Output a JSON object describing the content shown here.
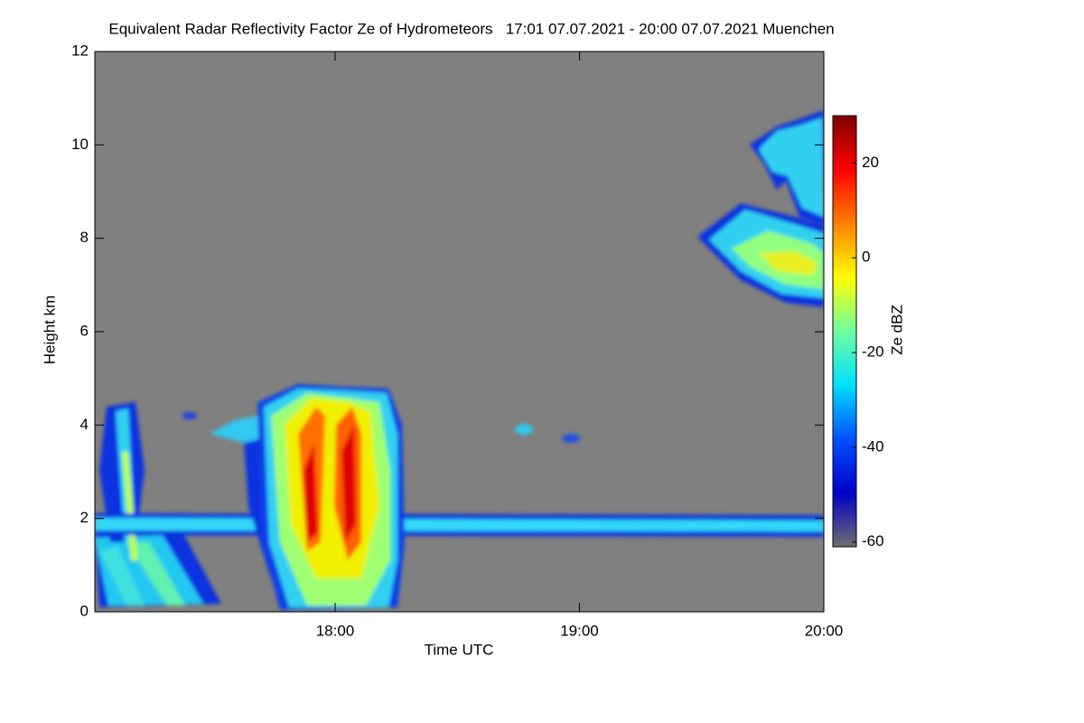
{
  "chart_data": {
    "type": "heatmap",
    "title": "Equivalent Radar Reflectivity Factor Ze of Hydrometeors   17:01 07.07.2021 - 20:00 07.07.2021 Muenchen",
    "x_label": "Time UTC",
    "y_label": "Height km",
    "colorbar_label": "Ze dBZ",
    "xlim": [
      1,
      180
    ],
    "xticks": [
      {
        "value": 60,
        "label": "18:00"
      },
      {
        "value": 120,
        "label": "19:00"
      },
      {
        "value": 180,
        "label": "20:00"
      }
    ],
    "ylim": [
      0,
      12
    ],
    "yticks": [
      0,
      2,
      4,
      6,
      8,
      10,
      12
    ],
    "clim": [
      -61,
      30
    ],
    "cticks": [
      -60,
      -40,
      -20,
      0,
      20
    ],
    "colormap": [
      "#6e6e6e",
      "#0000c8",
      "#0050ff",
      "#00e0ff",
      "#70ffa0",
      "#ffff00",
      "#ff8000",
      "#ff0000",
      "#800000"
    ],
    "background": "#808080"
  }
}
